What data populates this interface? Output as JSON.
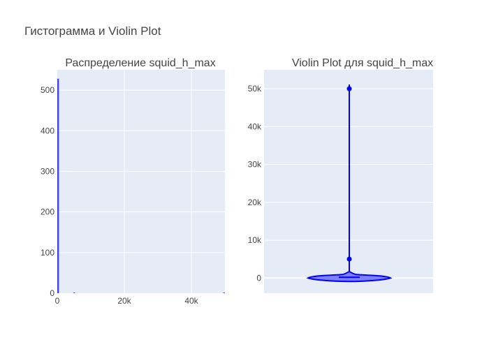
{
  "figure": {
    "title": "Гистограмма и Violin Plot"
  },
  "colors": {
    "plot_bg": "#e5ecf6",
    "grid": "#ffffff",
    "bar": "#4040ff",
    "violin_fill": "#8080ff",
    "violin_line": "#0000ff",
    "text": "#444444",
    "title_text": "#444444"
  },
  "chart_data": [
    {
      "type": "histogram",
      "title": "Распределение squid_h_max",
      "xlabel": "",
      "ylabel": "",
      "xlim": [
        0,
        50000
      ],
      "ylim": [
        0,
        550
      ],
      "x_ticks": [
        0,
        20000,
        40000
      ],
      "x_tick_labels": [
        "0",
        "20k",
        "40k"
      ],
      "y_ticks": [
        0,
        100,
        200,
        300,
        400,
        500
      ],
      "y_tick_labels": [
        "0",
        "100",
        "200",
        "300",
        "400",
        "500"
      ],
      "bins": [
        {
          "x0": 0,
          "x1": 500,
          "count": 528
        },
        {
          "x0": 4800,
          "x1": 5300,
          "count": 1
        },
        {
          "x0": 49500,
          "x1": 50000,
          "count": 1
        }
      ],
      "grid": true
    },
    {
      "type": "violin",
      "title": "Violin Plot для squid_h_max",
      "xlabel": "",
      "ylabel": "",
      "ylim": [
        -4000,
        55000
      ],
      "y_ticks": [
        0,
        10000,
        20000,
        30000,
        40000,
        50000
      ],
      "y_tick_labels": [
        "0",
        "10k",
        "20k",
        "30k",
        "40k",
        "50k"
      ],
      "outliers": [
        5000,
        50000
      ],
      "whisker_top": 50000,
      "median": 0,
      "grid": true
    }
  ]
}
